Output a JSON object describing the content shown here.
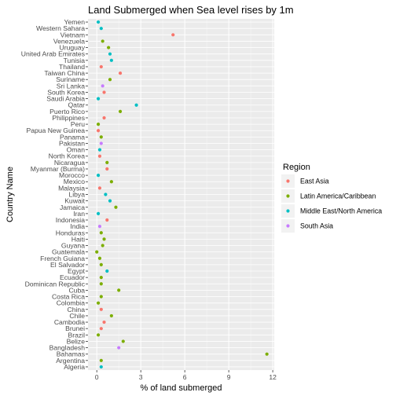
{
  "chart_data": {
    "type": "scatter",
    "title": "Land Submerged when Sea level rises by 1m",
    "xlabel": "% of land submerged",
    "ylabel": "Country Name",
    "xlim": [
      -0.6,
      12.1
    ],
    "x_ticks": [
      0,
      3,
      6,
      9,
      12
    ],
    "grid": true,
    "legend_title": "Region",
    "legend_position": "right",
    "series": [
      {
        "name": "East Asia",
        "color": "#F8766D"
      },
      {
        "name": "Latin America/Caribbean",
        "color": "#7CAE00"
      },
      {
        "name": "Middle East/North America",
        "color": "#00BFC4"
      },
      {
        "name": "South Asia",
        "color": "#C77CFF"
      }
    ],
    "points": [
      {
        "country": "Algeria",
        "value": 0.3,
        "region": "Middle East/North America"
      },
      {
        "country": "Argentina",
        "value": 0.3,
        "region": "Latin America/Caribbean"
      },
      {
        "country": "Bahamas",
        "value": 11.6,
        "region": "Latin America/Caribbean"
      },
      {
        "country": "Bangladesh",
        "value": 1.5,
        "region": "South Asia"
      },
      {
        "country": "Belize",
        "value": 1.8,
        "region": "Latin America/Caribbean"
      },
      {
        "country": "Brazil",
        "value": 0.1,
        "region": "Latin America/Caribbean"
      },
      {
        "country": "Brunei",
        "value": 0.3,
        "region": "East Asia"
      },
      {
        "country": "Cambodia",
        "value": 0.5,
        "region": "East Asia"
      },
      {
        "country": "Chile",
        "value": 1.0,
        "region": "Latin America/Caribbean"
      },
      {
        "country": "China",
        "value": 0.3,
        "region": "East Asia"
      },
      {
        "country": "Colombia",
        "value": 0.1,
        "region": "Latin America/Caribbean"
      },
      {
        "country": "Costa Rica",
        "value": 0.3,
        "region": "Latin America/Caribbean"
      },
      {
        "country": "Cuba",
        "value": 1.5,
        "region": "Latin America/Caribbean"
      },
      {
        "country": "Dominican Republic",
        "value": 0.3,
        "region": "Latin America/Caribbean"
      },
      {
        "country": "Ecuador",
        "value": 0.3,
        "region": "Latin America/Caribbean"
      },
      {
        "country": "Egypt",
        "value": 0.7,
        "region": "Middle East/North America"
      },
      {
        "country": "El Salvador",
        "value": 0.3,
        "region": "Latin America/Caribbean"
      },
      {
        "country": "French Guiana",
        "value": 0.2,
        "region": "Latin America/Caribbean"
      },
      {
        "country": "Guatemala",
        "value": 0.0,
        "region": "Latin America/Caribbean"
      },
      {
        "country": "Guyana",
        "value": 0.4,
        "region": "Latin America/Caribbean"
      },
      {
        "country": "Haiti",
        "value": 0.5,
        "region": "Latin America/Caribbean"
      },
      {
        "country": "Honduras",
        "value": 0.3,
        "region": "Latin America/Caribbean"
      },
      {
        "country": "India",
        "value": 0.2,
        "region": "South Asia"
      },
      {
        "country": "Indonesia",
        "value": 0.7,
        "region": "East Asia"
      },
      {
        "country": "Iran",
        "value": 0.1,
        "region": "Middle East/North America"
      },
      {
        "country": "Jamaica",
        "value": 1.3,
        "region": "Latin America/Caribbean"
      },
      {
        "country": "Kuwait",
        "value": 0.9,
        "region": "Middle East/North America"
      },
      {
        "country": "Libya",
        "value": 0.6,
        "region": "Middle East/North America"
      },
      {
        "country": "Malaysia",
        "value": 0.2,
        "region": "East Asia"
      },
      {
        "country": "Mexico",
        "value": 1.0,
        "region": "Latin America/Caribbean"
      },
      {
        "country": "Morocco",
        "value": 0.1,
        "region": "Middle East/North America"
      },
      {
        "country": "Myanmar (Burma)",
        "value": 0.7,
        "region": "East Asia"
      },
      {
        "country": "Nicaragua",
        "value": 0.7,
        "region": "Latin America/Caribbean"
      },
      {
        "country": "North Korea",
        "value": 0.2,
        "region": "East Asia"
      },
      {
        "country": "Oman",
        "value": 0.2,
        "region": "Middle East/North America"
      },
      {
        "country": "Pakistan",
        "value": 0.3,
        "region": "South Asia"
      },
      {
        "country": "Panama",
        "value": 0.3,
        "region": "Latin America/Caribbean"
      },
      {
        "country": "Papua New Guinea",
        "value": 0.1,
        "region": "East Asia"
      },
      {
        "country": "Peru",
        "value": 0.1,
        "region": "Latin America/Caribbean"
      },
      {
        "country": "Philippines",
        "value": 0.5,
        "region": "East Asia"
      },
      {
        "country": "Puerto Rico",
        "value": 1.6,
        "region": "Latin America/Caribbean"
      },
      {
        "country": "Qatar",
        "value": 2.7,
        "region": "Middle East/North America"
      },
      {
        "country": "Saudi Arabia",
        "value": 0.1,
        "region": "Middle East/North America"
      },
      {
        "country": "South Korea",
        "value": 0.5,
        "region": "East Asia"
      },
      {
        "country": "Sri Lanka",
        "value": 0.4,
        "region": "South Asia"
      },
      {
        "country": "Suriname",
        "value": 0.9,
        "region": "Latin America/Caribbean"
      },
      {
        "country": "Taiwan China",
        "value": 1.6,
        "region": "East Asia"
      },
      {
        "country": "Thailand",
        "value": 0.3,
        "region": "East Asia"
      },
      {
        "country": "Tunisia",
        "value": 1.0,
        "region": "Middle East/North America"
      },
      {
        "country": "United Arab Emirates",
        "value": 0.9,
        "region": "Middle East/North America"
      },
      {
        "country": "Uruguay",
        "value": 0.8,
        "region": "Latin America/Caribbean"
      },
      {
        "country": "Venezuela",
        "value": 0.4,
        "region": "Latin America/Caribbean"
      },
      {
        "country": "Vietnam",
        "value": 5.2,
        "region": "East Asia"
      },
      {
        "country": "Western Sahara",
        "value": 0.3,
        "region": "Middle East/North America"
      },
      {
        "country": "Yemen",
        "value": 0.1,
        "region": "Middle East/North America"
      }
    ]
  }
}
